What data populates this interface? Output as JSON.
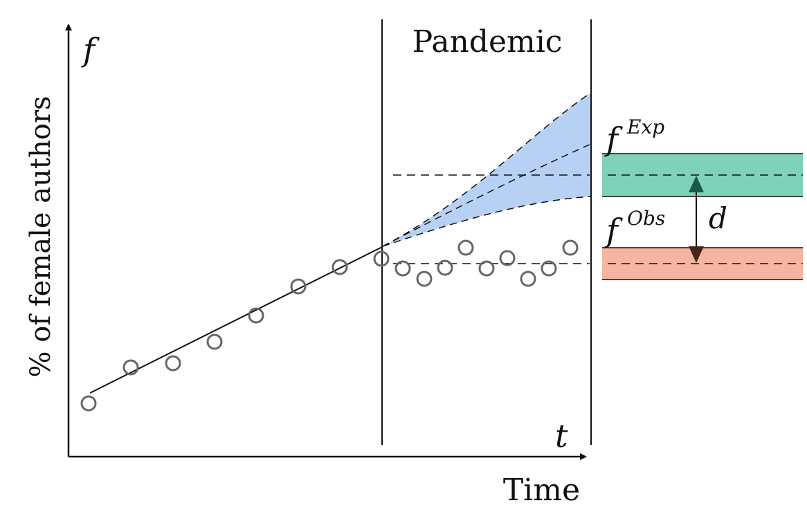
{
  "labels": {
    "y_axis": "% of female authors",
    "x_axis": "Time",
    "y_var": "f",
    "x_var": "t",
    "pandemic": "Pandemic",
    "f_exp_base": "f",
    "f_exp_sup": "Exp",
    "f_obs_base": "f",
    "f_obs_sup": "Obs",
    "distance": "d"
  },
  "colors": {
    "axis": "#111111",
    "marker": "#666666",
    "forecast_fill": "#a9c9f2",
    "exp_band": "#7fd1b9",
    "obs_band": "#f5b5a0",
    "arrow_up": "#145a46",
    "arrow_down": "#4a2418"
  },
  "chart_data": {
    "type": "scatter",
    "pre_pandemic_points": [
      [
        0,
        0.0
      ],
      [
        1,
        0.9
      ],
      [
        2,
        1.0
      ],
      [
        3,
        1.5
      ],
      [
        4,
        2.1
      ],
      [
        5,
        2.8
      ],
      [
        6,
        3.2
      ],
      [
        7,
        3.5
      ]
    ],
    "pandemic_points": [
      [
        7.5,
        3.3
      ],
      [
        8.0,
        3.05
      ],
      [
        8.5,
        3.3
      ],
      [
        9.0,
        3.75
      ],
      [
        9.5,
        3.3
      ],
      [
        10.0,
        3.5
      ],
      [
        10.5,
        3.05
      ],
      [
        11.0,
        3.3
      ],
      [
        11.5,
        3.75
      ]
    ],
    "trend_line": [
      [
        0,
        0.25
      ],
      [
        7,
        3.6
      ]
    ],
    "forecast": {
      "start": [
        7,
        3.6
      ],
      "end_upper": [
        12,
        7.6
      ],
      "end_middle": [
        12,
        6.1
      ],
      "end_lower": [
        12,
        4.75
      ]
    },
    "f_exp": 5.4,
    "f_obs": 3.5,
    "pandemic_start": 7,
    "pandemic_end": 12
  }
}
